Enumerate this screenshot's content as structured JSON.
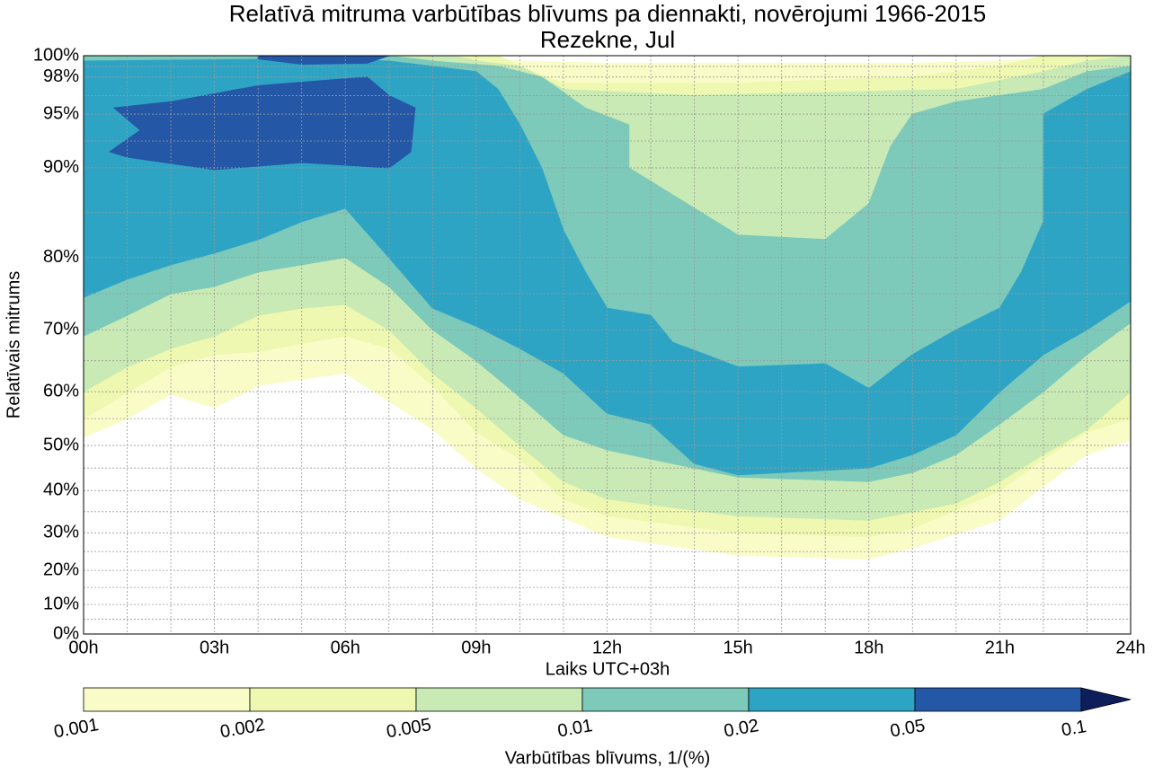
{
  "chart_data": {
    "type": "contour",
    "title": "Relatīvā mitruma varbūtības blīvums pa diennakti, novērojumi 1966-2015",
    "subtitle": "Rezekne, Jul",
    "x_label": "Laiks UTC+03h",
    "y_label": "Relatīvais mitrums",
    "colorbar_label": "Varbūtības blīvums, 1/(%)",
    "xlim": [
      0,
      24
    ],
    "xticks": [
      {
        "value": 0,
        "label": "00h"
      },
      {
        "value": 3,
        "label": "03h"
      },
      {
        "value": 6,
        "label": "06h"
      },
      {
        "value": 9,
        "label": "09h"
      },
      {
        "value": 12,
        "label": "12h"
      },
      {
        "value": 15,
        "label": "15h"
      },
      {
        "value": 18,
        "label": "18h"
      },
      {
        "value": 21,
        "label": "21h"
      },
      {
        "value": 24,
        "label": "24h"
      }
    ],
    "ylim": [
      0,
      100
    ],
    "yticks": [
      {
        "value": 0,
        "label": "0%"
      },
      {
        "value": 10,
        "label": "10%"
      },
      {
        "value": 20,
        "label": "20%"
      },
      {
        "value": 30,
        "label": "30%"
      },
      {
        "value": 40,
        "label": "40%"
      },
      {
        "value": 50,
        "label": "50%"
      },
      {
        "value": 60,
        "label": "60%"
      },
      {
        "value": 70,
        "label": "70%"
      },
      {
        "value": 80,
        "label": "80%"
      },
      {
        "value": 90,
        "label": "90%"
      },
      {
        "value": 95,
        "label": "95%"
      },
      {
        "value": 98,
        "label": "98%"
      },
      {
        "value": 100,
        "label": "100%"
      }
    ],
    "grid": true,
    "levels": [
      0.001,
      0.002,
      0.005,
      0.01,
      0.02,
      0.05,
      0.1
    ],
    "colors": [
      "#fafcc8",
      "#eef8b0",
      "#c9eab5",
      "#7dcaba",
      "#2ea4c5",
      "#2457a6"
    ],
    "extend_color": "#0d1e5a",
    "regions": [
      [
        {
          "x": [
            0,
            9,
            10,
            12,
            16,
            19,
            21,
            23,
            24,
            24,
            23,
            22,
            21,
            19,
            18,
            15,
            12,
            10,
            9,
            8,
            6,
            5,
            4,
            3,
            2,
            1,
            0
          ],
          "y": [
            100,
            100,
            99.5,
            99.3,
            99.3,
            99.3,
            99.5,
            100,
            100,
            51,
            48,
            41,
            33,
            26,
            23,
            24,
            29,
            38,
            45,
            53,
            63,
            62,
            61,
            57,
            59.5,
            55,
            51.5
          ]
        }
      ],
      [
        {
          "x": [
            0,
            9.5,
            10,
            11,
            15,
            19,
            21,
            22,
            24,
            24,
            23,
            22,
            21,
            19,
            18,
            15,
            12,
            11,
            10,
            9,
            8,
            7,
            6,
            4,
            3,
            2,
            0
          ],
          "y": [
            100,
            100,
            99,
            97.5,
            97.5,
            98,
            99,
            100,
            100,
            55,
            52.5,
            47,
            40,
            31,
            29,
            30,
            34,
            38,
            47,
            52.5,
            61,
            67,
            69,
            66.5,
            66,
            64,
            55
          ]
        }
      ],
      [
        {
          "x": [
            0,
            8.5,
            9,
            10,
            10.5,
            11,
            14,
            20,
            22,
            23,
            24,
            24,
            23,
            22,
            21,
            20,
            18,
            15,
            12,
            11,
            10,
            9,
            8,
            7,
            6,
            5,
            4,
            3,
            2,
            1,
            0
          ],
          "y": [
            100,
            100,
            99.5,
            99,
            98,
            97,
            96.5,
            97,
            98.5,
            99.5,
            100,
            60,
            53,
            48,
            42,
            37,
            33,
            34,
            38,
            42,
            50,
            57,
            63,
            70,
            73.5,
            73,
            72,
            69,
            67,
            64,
            60
          ]
        }
      ],
      [
        {
          "x": [
            0,
            7,
            8,
            9.5,
            10.5,
            11.5,
            12.5,
            12.5,
            13.5,
            15,
            17,
            18,
            18.5,
            19,
            20,
            22,
            23,
            24,
            24,
            23,
            22,
            21,
            20,
            19,
            18,
            15,
            12,
            11,
            10,
            9,
            8,
            7,
            6,
            4,
            3,
            2,
            1,
            0
          ],
          "y": [
            100,
            100,
            99.5,
            99,
            98,
            95.5,
            94,
            90,
            87,
            82.5,
            82,
            86,
            92,
            95,
            96,
            97,
            98.5,
            99,
            71,
            66,
            60,
            54,
            48,
            44,
            42,
            43,
            49,
            52,
            59,
            65,
            70,
            76,
            80,
            78,
            76,
            75,
            72,
            69
          ]
        }
      ],
      [
        {
          "x": [
            0,
            5,
            7,
            8,
            9,
            9.5,
            10,
            10.5,
            11,
            11.5,
            12,
            13,
            13.5,
            15,
            17,
            18,
            19,
            20,
            21,
            21.5,
            22,
            22,
            22,
            23,
            24,
            24,
            23,
            22,
            21,
            20,
            19,
            18,
            15,
            14,
            13,
            12,
            11,
            10,
            9,
            8,
            7,
            6,
            5,
            4,
            3,
            2,
            1,
            0
          ],
          "y": [
            99.5,
            99.7,
            99.5,
            99,
            98.5,
            97,
            94,
            90,
            83,
            78,
            73,
            72,
            68,
            64,
            64.5,
            60.5,
            66,
            70,
            73,
            78,
            84,
            90,
            95,
            97,
            98.5,
            74,
            70,
            66,
            60,
            52,
            48,
            45,
            43.5,
            46,
            54,
            56,
            63,
            67,
            70.5,
            73,
            80,
            85.5,
            84,
            82,
            80.5,
            79,
            77,
            74.5
          ]
        }
      ],
      [
        {
          "x": [
            0.6,
            1.3,
            0.7,
            2,
            4,
            6.5,
            7,
            7.6,
            7.5,
            7,
            5,
            3,
            1
          ],
          "y": [
            91.5,
            93.5,
            95.5,
            96,
            97.3,
            98,
            96.5,
            95.5,
            91.5,
            90,
            90.5,
            89.8,
            91
          ]
        },
        {
          "x": [
            4,
            7,
            6.5,
            5,
            4
          ],
          "y": [
            100,
            100,
            99.3,
            99.2,
            99.7
          ]
        }
      ]
    ]
  }
}
